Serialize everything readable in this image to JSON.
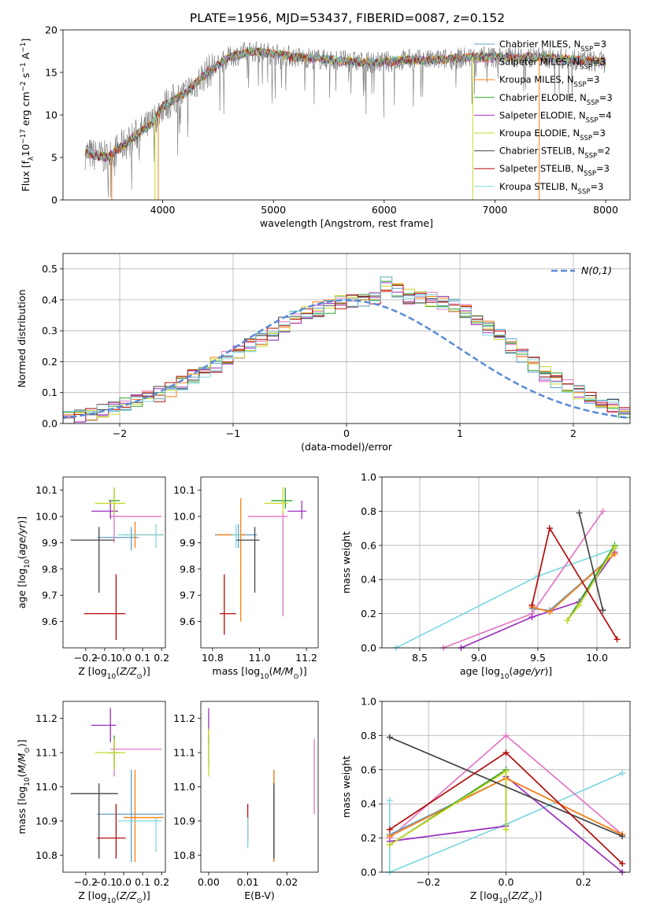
{
  "figure_title": "PLATE=1956, MJD=53437, FIBERID=0087, z=0.152",
  "colors": {
    "chabrier_miles": "#5f9fc9",
    "salpeter_miles": "#e377c2",
    "kroupa_miles": "#ff7f0e",
    "chabrier_elodie": "#2ca02c",
    "salpeter_elodie": "#9b30c0",
    "kroupa_elodie": "#c8d82a",
    "chabrier_stelib": "#444444",
    "salpeter_stelib": "#b40c0c",
    "kroupa_stelib": "#7fd8e0",
    "normal_curve": "#5b8ad6",
    "grid": "#b0b0b0"
  },
  "legend_models": [
    {
      "key": "chabrier_miles",
      "label": "Chabrier MILES, N",
      "sub": "SSP",
      "eq": "=3"
    },
    {
      "key": "salpeter_miles",
      "label": "Salpeter MILES, N",
      "sub": "SSP",
      "eq": "=3"
    },
    {
      "key": "kroupa_miles",
      "label": "Kroupa MILES, N",
      "sub": "SSP",
      "eq": "=3"
    },
    {
      "key": "chabrier_elodie",
      "label": "Chabrier ELODIE, N",
      "sub": "SSP",
      "eq": "=3"
    },
    {
      "key": "salpeter_elodie",
      "label": "Salpeter ELODIE, N",
      "sub": "SSP",
      "eq": "=4"
    },
    {
      "key": "kroupa_elodie",
      "label": "Kroupa ELODIE, N",
      "sub": "SSP",
      "eq": "=3"
    },
    {
      "key": "chabrier_stelib",
      "label": "Chabrier STELIB, N",
      "sub": "SSP",
      "eq": "=2"
    },
    {
      "key": "salpeter_stelib",
      "label": "Salpeter STELIB, N",
      "sub": "SSP",
      "eq": "=3"
    },
    {
      "key": "kroupa_stelib",
      "label": "Kroupa STELIB, N",
      "sub": "SSP",
      "eq": "=3"
    }
  ],
  "chart_data": [
    {
      "id": "spectrum",
      "type": "line",
      "xlabel": "wavelength [Angstrom, rest frame]",
      "ylabel": "Flux [f_λ 10^-17 erg cm^-2 s^-1 A^-1]",
      "xlim": [
        3100,
        8220
      ],
      "ylim": [
        0,
        20
      ],
      "xticks": [
        4000,
        5000,
        6000,
        7000,
        8000
      ],
      "yticks": [
        0,
        5,
        10,
        15,
        20
      ],
      "grid": false,
      "legend_position": "right",
      "continuum": [
        [
          3300,
          5.5
        ],
        [
          3500,
          5.0
        ],
        [
          3700,
          7.0
        ],
        [
          3900,
          9.0
        ],
        [
          4000,
          11.0
        ],
        [
          4200,
          12.5
        ],
        [
          4400,
          15.0
        ],
        [
          4600,
          16.8
        ],
        [
          4800,
          17.5
        ],
        [
          5000,
          17.2
        ],
        [
          5200,
          16.8
        ],
        [
          5400,
          16.6
        ],
        [
          5600,
          16.4
        ],
        [
          5800,
          16.2
        ],
        [
          6000,
          16.2
        ],
        [
          6200,
          16.5
        ],
        [
          6400,
          16.4
        ],
        [
          6600,
          16.6
        ],
        [
          6800,
          16.8
        ],
        [
          7000,
          16.8
        ],
        [
          7200,
          16.8
        ],
        [
          7400,
          16.8
        ],
        [
          7700,
          16.5
        ],
        [
          8000,
          16.2
        ]
      ],
      "spectrum_range": [
        3300,
        8000
      ]
    },
    {
      "id": "residuals",
      "type": "histogram",
      "xlabel": "(data-model)/error",
      "ylabel": "Normed distribution",
      "xlim": [
        -2.5,
        2.5
      ],
      "ylim": [
        0,
        0.55
      ],
      "xticks": [
        -2,
        -1,
        0,
        1,
        2
      ],
      "yticks": [
        0.0,
        0.1,
        0.2,
        0.3,
        0.4,
        0.5
      ],
      "grid": true,
      "legend_position": "top-right",
      "curve_label": "N(0,1)",
      "bin_width": 0.1,
      "base_values": [
        0.017,
        0.021,
        0.026,
        0.032,
        0.04,
        0.048,
        0.058,
        0.068,
        0.082,
        0.095,
        0.11,
        0.13,
        0.15,
        0.17,
        0.19,
        0.21,
        0.23,
        0.25,
        0.27,
        0.29,
        0.32,
        0.34,
        0.36,
        0.37,
        0.38,
        0.39,
        0.4,
        0.4,
        0.4,
        0.45,
        0.43,
        0.41,
        0.41,
        0.4,
        0.39,
        0.38,
        0.36,
        0.34,
        0.31,
        0.28,
        0.25,
        0.22,
        0.19,
        0.16,
        0.14,
        0.12,
        0.1,
        0.08,
        0.065,
        0.055,
        0.04,
        0.035,
        0.03
      ]
    },
    {
      "id": "age_vs_Z",
      "type": "errorbar",
      "xlabel": "Z [log10(Z/Z⊙)]",
      "ylabel": "age [log10(age/yr)]",
      "xlim": [
        -0.32,
        0.22
      ],
      "ylim": [
        9.5,
        10.15
      ],
      "xticks": [
        -0.2,
        -0.1,
        0.0,
        0.1,
        0.2
      ],
      "yticks": [
        9.6,
        9.7,
        9.8,
        9.9,
        10.0,
        10.1
      ],
      "grid": false,
      "points": [
        {
          "c": "chabrier_miles",
          "x": 0.04,
          "xe": [
            0.18,
            0.04
          ],
          "y": 9.92,
          "ye": [
            0.05,
            0.04
          ]
        },
        {
          "c": "salpeter_miles",
          "x": -0.05,
          "xe": [
            0.02,
            0.25
          ],
          "y": 10.0,
          "ye": [
            0.1,
            0.05
          ]
        },
        {
          "c": "kroupa_miles",
          "x": 0.06,
          "xe": [
            0.06,
            0.15
          ],
          "y": 9.93,
          "ye": [
            0.05,
            0.05
          ]
        },
        {
          "c": "chabrier_elodie",
          "x": -0.05,
          "xe": [
            0.03,
            0.03
          ],
          "y": 10.06,
          "ye": [
            0.04,
            0.05
          ]
        },
        {
          "c": "salpeter_elodie",
          "x": -0.07,
          "xe": [
            0.1,
            0.04
          ],
          "y": 10.02,
          "ye": [
            0.03,
            0.04
          ]
        },
        {
          "c": "kroupa_elodie",
          "x": -0.05,
          "xe": [
            0.1,
            0.06
          ],
          "y": 10.05,
          "ye": [
            0.04,
            0.06
          ]
        },
        {
          "c": "chabrier_stelib",
          "x": -0.13,
          "xe": [
            0.15,
            0.08
          ],
          "y": 9.91,
          "ye": [
            0.2,
            0.05
          ]
        },
        {
          "c": "salpeter_stelib",
          "x": -0.04,
          "xe": [
            0.17,
            0.05
          ],
          "y": 9.63,
          "ye": [
            0.1,
            0.15
          ]
        },
        {
          "c": "kroupa_stelib",
          "x": 0.17,
          "xe": [
            0.2,
            0.04
          ],
          "y": 9.93,
          "ye": [
            0.05,
            0.04
          ]
        }
      ]
    },
    {
      "id": "age_vs_mass",
      "type": "errorbar",
      "xlabel": "mass [log10(M/M⊙)]",
      "ylabel": "",
      "xlim": [
        10.75,
        11.25
      ],
      "ylim": [
        9.5,
        10.15
      ],
      "xticks": [
        10.8,
        11.0,
        11.2
      ],
      "yticks": [
        9.6,
        9.7,
        9.8,
        9.9,
        10.0,
        10.1
      ],
      "grid": false,
      "points": [
        {
          "c": "chabrier_miles",
          "x": 10.91,
          "xe": [
            0.1,
            0.08
          ],
          "y": 9.93,
          "ye": [
            0.05,
            0.04
          ]
        },
        {
          "c": "salpeter_miles",
          "x": 11.1,
          "xe": [
            0.15,
            0.02
          ],
          "y": 10.0,
          "ye": [
            0.38,
            0.02
          ]
        },
        {
          "c": "kroupa_miles",
          "x": 10.92,
          "xe": [
            0.1,
            0.02
          ],
          "y": 9.93,
          "ye": [
            0.33,
            0.14
          ]
        },
        {
          "c": "chabrier_elodie",
          "x": 11.11,
          "xe": [
            0.06,
            0.03
          ],
          "y": 10.06,
          "ye": [
            0.03,
            0.05
          ]
        },
        {
          "c": "salpeter_elodie",
          "x": 11.18,
          "xe": [
            0.06,
            0.02
          ],
          "y": 10.02,
          "ye": [
            0.03,
            0.04
          ]
        },
        {
          "c": "kroupa_elodie",
          "x": 11.1,
          "xe": [
            0.08,
            0.02
          ],
          "y": 10.05,
          "ye": [
            0.04,
            0.06
          ]
        },
        {
          "c": "chabrier_stelib",
          "x": 10.98,
          "xe": [
            0.08,
            0.02
          ],
          "y": 9.91,
          "ye": [
            0.2,
            0.05
          ]
        },
        {
          "c": "salpeter_stelib",
          "x": 10.85,
          "xe": [
            0.02,
            0.05
          ],
          "y": 9.63,
          "ye": [
            0.08,
            0.15
          ]
        },
        {
          "c": "kroupa_stelib",
          "x": 10.9,
          "xe": [
            0.02,
            0.02
          ],
          "y": 9.93,
          "ye": [
            0.05,
            0.04
          ]
        }
      ]
    },
    {
      "id": "weight_vs_age",
      "type": "line",
      "xlabel": "age [log10(age/yr)]",
      "ylabel": "mass weight",
      "xlim": [
        8.18,
        10.28
      ],
      "ylim": [
        0,
        1.0
      ],
      "xticks": [
        8.5,
        9.0,
        9.5,
        10.0
      ],
      "yticks": [
        0.0,
        0.2,
        0.4,
        0.6,
        0.8,
        1.0
      ],
      "grid": true,
      "series": [
        {
          "c": "kroupa_stelib",
          "x": [
            8.3,
            9.5,
            10.15
          ],
          "y": [
            0.0,
            0.42,
            0.58
          ]
        },
        {
          "c": "salpeter_miles",
          "x": [
            8.7,
            9.45,
            10.05
          ],
          "y": [
            0.0,
            0.2,
            0.8
          ]
        },
        {
          "c": "salpeter_elodie",
          "x": [
            8.85,
            9.45,
            9.85,
            10.15
          ],
          "y": [
            0.0,
            0.18,
            0.27,
            0.56
          ]
        },
        {
          "c": "chabrier_miles",
          "x": [
            9.45,
            9.6,
            10.15
          ],
          "y": [
            0.23,
            0.22,
            0.55
          ]
        },
        {
          "c": "kroupa_miles",
          "x": [
            9.45,
            9.6,
            10.15
          ],
          "y": [
            0.24,
            0.21,
            0.55
          ]
        },
        {
          "c": "chabrier_elodie",
          "x": [
            9.75,
            10.15
          ],
          "y": [
            0.16,
            0.6
          ]
        },
        {
          "c": "kroupa_elodie",
          "x": [
            9.75,
            9.85,
            10.15
          ],
          "y": [
            0.16,
            0.25,
            0.59
          ]
        },
        {
          "c": "chabrier_stelib",
          "x": [
            9.85,
            10.05
          ],
          "y": [
            0.79,
            0.22
          ]
        },
        {
          "c": "salpeter_stelib",
          "x": [
            9.45,
            9.6,
            10.17
          ],
          "y": [
            0.25,
            0.7,
            0.05
          ]
        }
      ]
    },
    {
      "id": "mass_vs_Z",
      "type": "errorbar",
      "xlabel": "Z [log10(Z/Z⊙)]",
      "ylabel": "mass [log10(M/M⊙)]",
      "xlim": [
        -0.32,
        0.22
      ],
      "ylim": [
        10.75,
        11.25
      ],
      "xticks": [
        -0.2,
        -0.1,
        0.0,
        0.1,
        0.2
      ],
      "yticks": [
        10.8,
        10.9,
        11.0,
        11.1,
        11.2
      ],
      "grid": false,
      "points": [
        {
          "c": "chabrier_miles",
          "x": 0.04,
          "xe": [
            0.18,
            0.17
          ],
          "y": 10.92,
          "ye": [
            0.14,
            0.13
          ]
        },
        {
          "c": "salpeter_miles",
          "x": -0.05,
          "xe": [
            0.02,
            0.25
          ],
          "y": 11.11,
          "ye": [
            0.08,
            0.02
          ]
        },
        {
          "c": "kroupa_miles",
          "x": 0.06,
          "xe": [
            0.06,
            0.15
          ],
          "y": 10.91,
          "ye": [
            0.13,
            0.14
          ]
        },
        {
          "c": "chabrier_elodie",
          "x": -0.05,
          "xe": [
            0.03,
            0.03
          ],
          "y": 11.1,
          "ye": [
            0.04,
            0.05
          ]
        },
        {
          "c": "salpeter_elodie",
          "x": -0.07,
          "xe": [
            0.1,
            0.03
          ],
          "y": 11.18,
          "ye": [
            0.05,
            0.05
          ]
        },
        {
          "c": "kroupa_elodie",
          "x": -0.05,
          "xe": [
            0.1,
            0.06
          ],
          "y": 11.1,
          "ye": [
            0.05,
            0.04
          ]
        },
        {
          "c": "chabrier_stelib",
          "x": -0.13,
          "xe": [
            0.15,
            0.1
          ],
          "y": 10.98,
          "ye": [
            0.19,
            0.03
          ]
        },
        {
          "c": "salpeter_stelib",
          "x": -0.04,
          "xe": [
            0.1,
            0.05
          ],
          "y": 10.85,
          "ye": [
            0.06,
            0.1
          ]
        },
        {
          "c": "kroupa_stelib",
          "x": 0.17,
          "xe": [
            0.2,
            0.03
          ],
          "y": 10.9,
          "ye": [
            0.09,
            0.01
          ]
        }
      ]
    },
    {
      "id": "mass_vs_EBV",
      "type": "errorbar",
      "xlabel": "E(B-V)",
      "ylabel": "",
      "xlim": [
        -0.002,
        0.028
      ],
      "ylim": [
        10.75,
        11.25
      ],
      "xticks": [
        0.0,
        0.01,
        0.02
      ],
      "yticks": [
        10.8,
        10.9,
        11.0,
        11.1,
        11.2
      ],
      "grid": false,
      "points": [
        {
          "c": "chabrier_miles",
          "x": 0.0167,
          "xe": [
            0,
            0
          ],
          "y": 10.92,
          "ye": [
            0.14,
            0.13
          ]
        },
        {
          "c": "salpeter_miles",
          "x": 0.027,
          "xe": [
            0,
            0
          ],
          "y": 11.03,
          "ye": [
            0.11,
            0.11
          ]
        },
        {
          "c": "kroupa_miles",
          "x": 0.0167,
          "xe": [
            0,
            0
          ],
          "y": 10.91,
          "ye": [
            0.13,
            0.14
          ]
        },
        {
          "c": "chabrier_elodie",
          "x": 0.0,
          "xe": [
            0,
            0
          ],
          "y": 11.1,
          "ye": [
            0.04,
            0.05
          ]
        },
        {
          "c": "salpeter_elodie",
          "x": 0.0,
          "xe": [
            0,
            0
          ],
          "y": 11.18,
          "ye": [
            0.05,
            0.05
          ]
        },
        {
          "c": "kroupa_elodie",
          "x": 0.0,
          "xe": [
            0,
            0
          ],
          "y": 11.1,
          "ye": [
            0.07,
            0.07
          ]
        },
        {
          "c": "chabrier_stelib",
          "x": 0.0167,
          "xe": [
            0,
            0
          ],
          "y": 10.98,
          "ye": [
            0.19,
            0.03
          ]
        },
        {
          "c": "salpeter_stelib",
          "x": 0.01,
          "xe": [
            0,
            0
          ],
          "y": 10.9,
          "ye": [
            0.06,
            0.05
          ]
        },
        {
          "c": "kroupa_stelib",
          "x": 0.01,
          "xe": [
            0,
            0
          ],
          "y": 10.87,
          "ye": [
            0.05,
            0.04
          ]
        }
      ]
    },
    {
      "id": "weight_vs_Z",
      "type": "line",
      "xlabel": "Z [log10(Z/Z⊙)]",
      "ylabel": "mass weight",
      "xlim": [
        -0.32,
        0.32
      ],
      "ylim": [
        0,
        1.0
      ],
      "xticks": [
        -0.2,
        0.0,
        0.2
      ],
      "yticks": [
        0.0,
        0.2,
        0.4,
        0.6,
        0.8,
        1.0
      ],
      "grid": true,
      "series": [
        {
          "c": "kroupa_stelib",
          "x": [
            -0.3,
            -0.3,
            0.0,
            0.3
          ],
          "y": [
            0.42,
            0.0,
            0.28,
            0.58
          ]
        },
        {
          "c": "salpeter_miles",
          "x": [
            -0.3,
            0.0,
            0.3
          ],
          "y": [
            0.2,
            0.8,
            0.22
          ]
        },
        {
          "c": "salpeter_elodie",
          "x": [
            -0.3,
            0.0,
            0.0,
            0.3
          ],
          "y": [
            0.18,
            0.27,
            0.56,
            0.0
          ]
        },
        {
          "c": "chabrier_miles",
          "x": [
            -0.3,
            0.0,
            0.3
          ],
          "y": [
            0.22,
            0.55,
            0.22
          ]
        },
        {
          "c": "kroupa_miles",
          "x": [
            -0.3,
            0.0,
            0.3
          ],
          "y": [
            0.21,
            0.55,
            0.22
          ]
        },
        {
          "c": "chabrier_elodie",
          "x": [
            -0.3,
            0.0,
            0.0
          ],
          "y": [
            0.16,
            0.6,
            0.25
          ]
        },
        {
          "c": "kroupa_elodie",
          "x": [
            -0.3,
            0.0,
            0.0
          ],
          "y": [
            0.16,
            0.59,
            0.25
          ]
        },
        {
          "c": "chabrier_stelib",
          "x": [
            -0.3,
            0.3
          ],
          "y": [
            0.79,
            0.21
          ]
        },
        {
          "c": "salpeter_stelib",
          "x": [
            -0.3,
            0.0,
            0.3
          ],
          "y": [
            0.25,
            0.7,
            0.05
          ]
        }
      ]
    }
  ]
}
